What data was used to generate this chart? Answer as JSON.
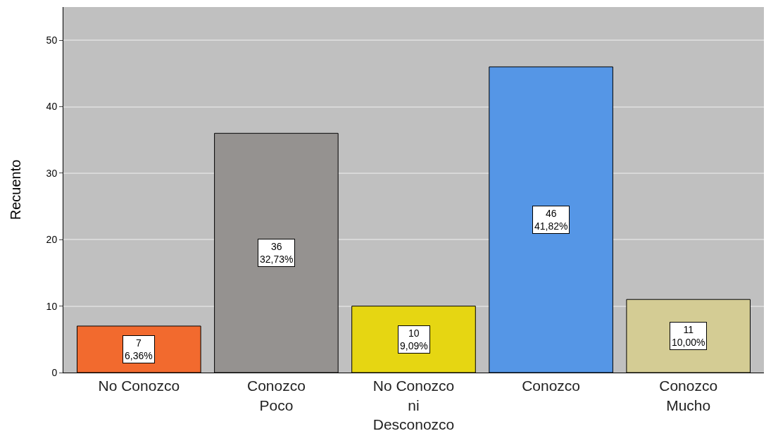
{
  "chart_data": {
    "type": "bar",
    "ylabel": "Recuento",
    "categories": [
      "No Conozco",
      "Conozco Poco",
      "No Conozco ni Desconozco",
      "Conozco",
      "Conozco Mucho"
    ],
    "values": [
      7,
      36,
      10,
      46,
      11
    ],
    "colors": [
      "#f26a2e",
      "#959290",
      "#e6d612",
      "#5596e6",
      "#d4cc94"
    ],
    "value_labels": [
      "7\n6,36%",
      "36\n32,73%",
      "10\n9,09%",
      "46\n41,82%",
      "11\n10,00%"
    ],
    "ylim": [
      0,
      55
    ],
    "yticks": [
      0,
      10,
      20,
      30,
      40,
      50
    ],
    "grid": "y",
    "legend": false
  }
}
